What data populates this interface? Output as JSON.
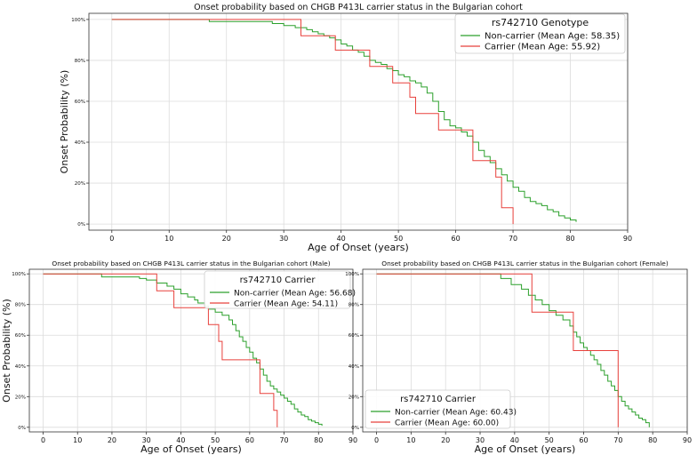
{
  "colors": {
    "non_carrier": "#2ca02c",
    "carrier": "#e8413c",
    "grid": "#dcdcdc"
  },
  "chart_data": [
    {
      "type": "line",
      "title": "Onset probability based on CHGB P413L carrier status in the Bulgarian cohort",
      "xlabel": "Age of Onset (years)",
      "ylabel": "Onset Probability (%)",
      "xlim": [
        -4,
        90
      ],
      "ylim": [
        -3,
        103
      ],
      "xticks": [
        0,
        10,
        20,
        30,
        40,
        50,
        60,
        70,
        80,
        90
      ],
      "yticks": [
        0,
        20,
        40,
        60,
        80,
        100
      ],
      "ytick_labels": [
        "0%",
        "20%",
        "40%",
        "60%",
        "80%",
        "100%"
      ],
      "grid": true,
      "legend": {
        "title": "rs742710 Genotype",
        "position": "top-right"
      },
      "series": [
        {
          "name": "Non-carrier (Mean Age: 58.35)",
          "color": "#2ca02c",
          "x": [
            0,
            17,
            28,
            30,
            32,
            34,
            35,
            36,
            37,
            38,
            39,
            40,
            41,
            42,
            43,
            44,
            45,
            46,
            47,
            48,
            49,
            50,
            51,
            52,
            53,
            54,
            55,
            56,
            57,
            58,
            59,
            60,
            61,
            62,
            63,
            64,
            65,
            66,
            67,
            68,
            69,
            70,
            71,
            72,
            73,
            74,
            75,
            76,
            77,
            78,
            79,
            80,
            81
          ],
          "y": [
            100,
            99,
            98,
            97,
            96,
            95,
            94,
            93,
            92,
            91,
            90,
            88,
            87,
            85,
            84,
            82,
            80,
            79,
            78,
            76,
            75,
            73,
            72,
            70,
            69,
            67,
            64,
            60,
            55,
            51,
            48,
            47,
            45,
            43,
            40,
            36,
            33,
            30,
            27,
            24,
            21,
            18,
            16,
            13,
            11,
            10,
            9,
            7,
            6,
            4,
            3,
            2,
            1
          ]
        },
        {
          "name": "Carrier (Mean Age: 55.92)",
          "color": "#e8413c",
          "x": [
            0,
            33,
            39,
            45,
            49,
            52,
            53,
            57,
            62,
            63,
            66,
            67,
            68,
            70
          ],
          "y": [
            100,
            92,
            85,
            77,
            69,
            62,
            54,
            46,
            46,
            31,
            31,
            23,
            8,
            0
          ]
        }
      ]
    },
    {
      "type": "line",
      "title": "Onset probability based on CHGB P413L carrier status in the Bulgarian cohort (Male)",
      "xlabel": "Age of Onset (years)",
      "ylabel": "Onset Probability (%)",
      "xlim": [
        -4,
        90
      ],
      "ylim": [
        -3,
        103
      ],
      "xticks": [
        0,
        10,
        20,
        30,
        40,
        50,
        60,
        70,
        80,
        90
      ],
      "yticks": [
        0,
        20,
        40,
        60,
        80,
        100
      ],
      "ytick_labels": [
        "0%",
        "20%",
        "40%",
        "60%",
        "80%",
        "100%"
      ],
      "grid": true,
      "legend": {
        "title": "rs742710 Carrier",
        "position": "top-right"
      },
      "series": [
        {
          "name": "Non-carrier (Mean Age: 56.68)",
          "color": "#2ca02c",
          "x": [
            0,
            17,
            28,
            30,
            33,
            36,
            38,
            40,
            42,
            44,
            45,
            47,
            48,
            50,
            52,
            54,
            55,
            56,
            57,
            58,
            59,
            60,
            61,
            62,
            63,
            64,
            65,
            66,
            67,
            68,
            69,
            70,
            71,
            72,
            73,
            74,
            75,
            76,
            77,
            78,
            79,
            80,
            81
          ],
          "y": [
            100,
            98,
            97,
            96,
            94,
            92,
            90,
            87,
            85,
            83,
            81,
            79,
            77,
            75,
            73,
            70,
            67,
            63,
            59,
            56,
            52,
            49,
            45,
            42,
            38,
            34,
            30,
            27,
            25,
            23,
            21,
            19,
            17,
            15,
            12,
            10,
            8,
            7,
            5,
            4,
            3,
            2,
            1
          ]
        },
        {
          "name": "Carrier (Mean Age: 54.11)",
          "color": "#e8413c",
          "x": [
            0,
            33,
            38,
            48,
            51,
            52,
            54,
            63,
            66,
            67,
            68
          ],
          "y": [
            100,
            89,
            78,
            67,
            56,
            44,
            44,
            22,
            22,
            11,
            0
          ]
        }
      ]
    },
    {
      "type": "line",
      "title": "Onset probability based on CHGB P413L carrier status in the Bulgarian cohort (Female)",
      "xlabel": "Age of Onset (years)",
      "ylabel": "",
      "xlim": [
        -4,
        90
      ],
      "ylim": [
        -3,
        103
      ],
      "xticks": [
        0,
        10,
        20,
        30,
        40,
        50,
        60,
        70,
        80,
        90
      ],
      "yticks": [
        0,
        20,
        40,
        60,
        80,
        100
      ],
      "ytick_labels": [
        "0%",
        "20%",
        "40%",
        "60%",
        "80%",
        "100%"
      ],
      "grid": true,
      "legend": {
        "title": "rs742710 Carrier",
        "position": "bottom-left"
      },
      "series": [
        {
          "name": "Non-carrier (Mean Age: 60.43)",
          "color": "#2ca02c",
          "x": [
            0,
            36,
            39,
            42,
            44,
            46,
            48,
            50,
            52,
            54,
            56,
            57,
            58,
            59,
            60,
            61,
            62,
            63,
            64,
            65,
            66,
            67,
            68,
            69,
            70,
            71,
            72,
            73,
            74,
            75,
            76,
            77,
            78,
            79
          ],
          "y": [
            100,
            97,
            93,
            90,
            86,
            83,
            80,
            76,
            73,
            70,
            66,
            62,
            59,
            55,
            52,
            50,
            47,
            44,
            41,
            37,
            34,
            30,
            27,
            24,
            20,
            17,
            14,
            12,
            10,
            8,
            6,
            5,
            3,
            0
          ]
        },
        {
          "name": "Carrier (Mean Age: 60.00)",
          "color": "#e8413c",
          "x": [
            0,
            45,
            57,
            70
          ],
          "y": [
            100,
            75,
            50,
            0
          ]
        }
      ]
    }
  ]
}
